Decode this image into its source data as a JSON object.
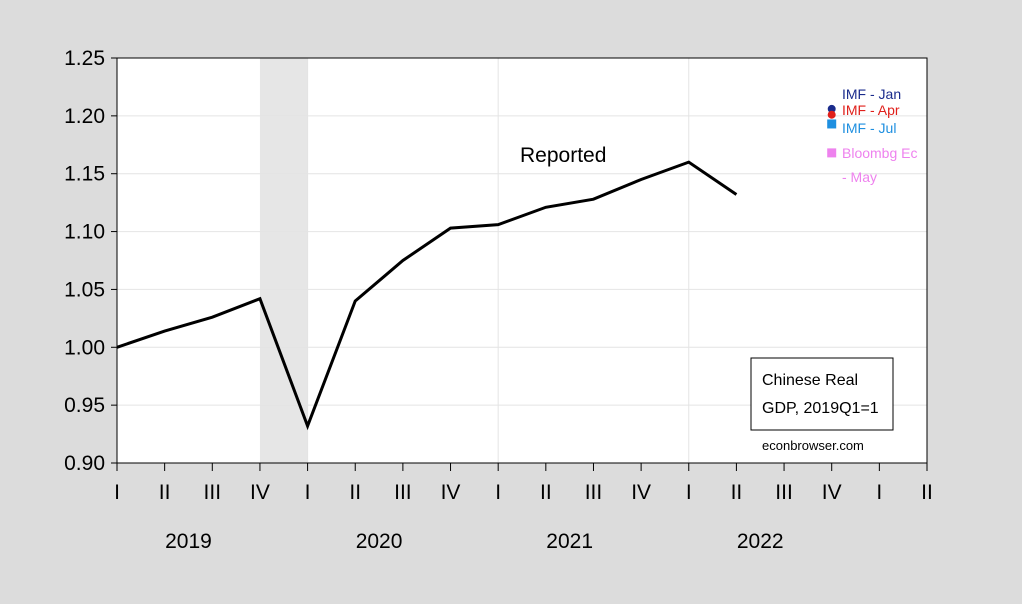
{
  "chart_data": {
    "type": "line",
    "title": "",
    "xlabel": "",
    "ylabel": "",
    "ylim": [
      0.9,
      1.25
    ],
    "yticks": [
      0.9,
      0.95,
      1.0,
      1.05,
      1.1,
      1.15,
      1.2,
      1.25
    ],
    "ytick_labels": [
      "0.90",
      "0.95",
      "1.00",
      "1.05",
      "1.10",
      "1.15",
      "1.20",
      "1.25"
    ],
    "x_quarters": [
      "I",
      "II",
      "III",
      "IV",
      "I",
      "II",
      "III",
      "IV",
      "I",
      "II",
      "III",
      "IV",
      "I",
      "II",
      "III",
      "IV",
      "I",
      "II"
    ],
    "x_years": [
      {
        "label": "2019",
        "first_quarter": 0
      },
      {
        "label": "2020",
        "first_quarter": 4
      },
      {
        "label": "2021",
        "first_quarter": 8
      },
      {
        "label": "2022",
        "first_quarter": 12
      }
    ],
    "shaded_region": {
      "from_quarter": 3,
      "to_quarter": 4,
      "color": "#e6e6e6"
    },
    "grid": true,
    "series": [
      {
        "name": "Reported",
        "color": "#000000",
        "x": [
          0,
          1,
          2,
          3,
          4,
          5,
          6,
          7,
          8,
          9,
          10,
          11,
          12,
          13
        ],
        "values": [
          1.0,
          1.014,
          1.026,
          1.042,
          0.932,
          1.04,
          1.075,
          1.103,
          1.106,
          1.121,
          1.128,
          1.145,
          1.16,
          1.132
        ]
      }
    ],
    "forecast_points": [
      {
        "name": "IMF - Jan",
        "x": 15,
        "value": 1.206,
        "color": "#1a2b8c",
        "marker": "circle"
      },
      {
        "name": "IMF - Apr",
        "x": 15,
        "value": 1.201,
        "color": "#e0201b",
        "marker": "circle"
      },
      {
        "name": "IMF - Jul",
        "x": 15,
        "value": 1.193,
        "color": "#1e8fe0",
        "marker": "square"
      },
      {
        "name": "Bloombg Ec - May",
        "x": 15,
        "value": 1.168,
        "color": "#ee82ee",
        "marker": "square"
      }
    ],
    "legend_labels": [
      {
        "text": "IMF - Jan",
        "color": "#1a2b8c"
      },
      {
        "text": "IMF - Apr",
        "color": "#e0201b"
      },
      {
        "text": "IMF - Jul",
        "color": "#1e8fe0"
      },
      {
        "text": "Bloombg Ec",
        "color": "#ee82ee"
      },
      {
        "text": "- May",
        "color": "#ee82ee"
      }
    ],
    "annotation": "Reported",
    "note_box": [
      "Chinese Real",
      "GDP, 2019Q1=1"
    ],
    "credit": "econbrowser.com"
  }
}
